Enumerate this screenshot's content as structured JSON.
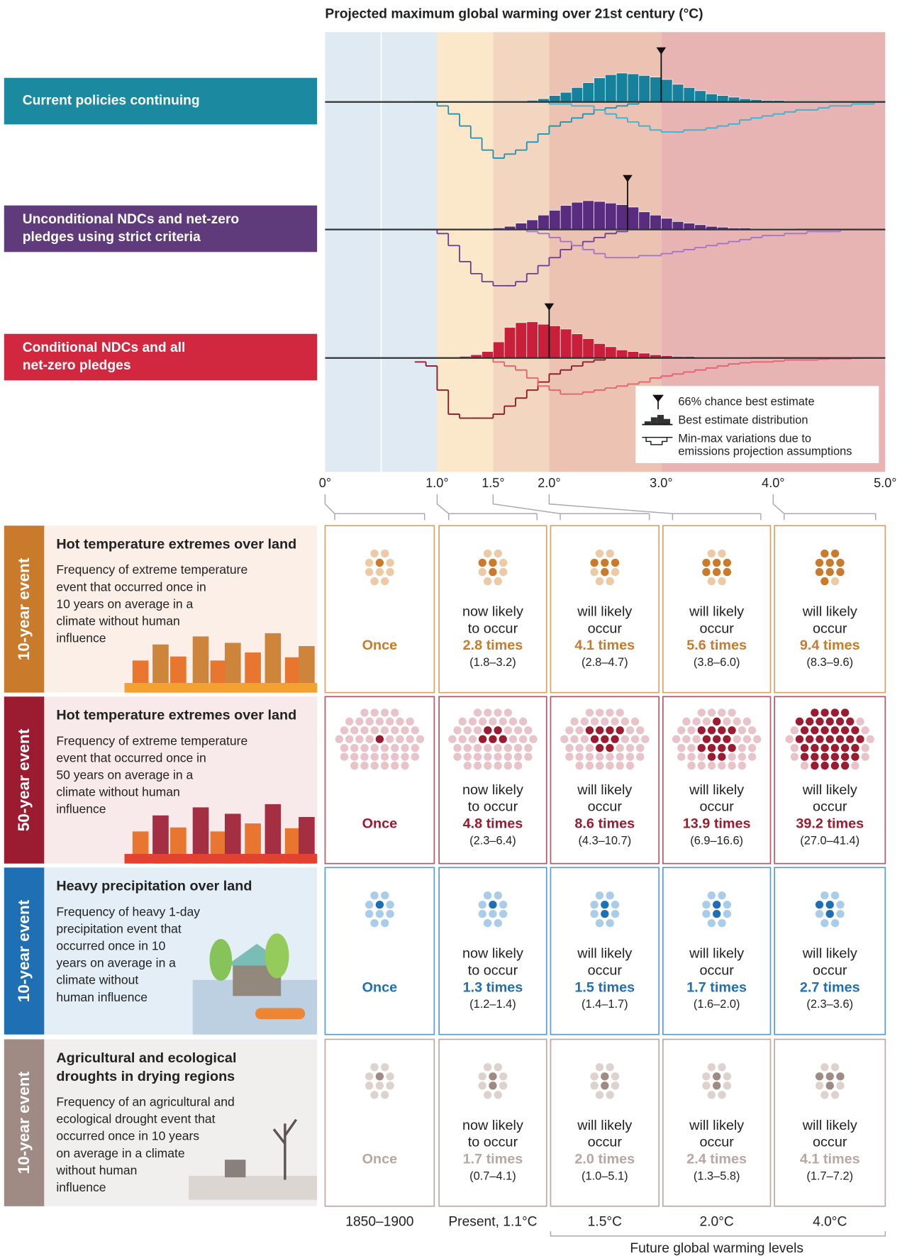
{
  "chart_data": {
    "type": "histogram",
    "title": "Projected maximum global warming over 21st century (°C)",
    "xlim": [
      0,
      5
    ],
    "xticks": [
      {
        "value": 0,
        "label": "0°"
      },
      {
        "value": 1,
        "label": "1.0°"
      },
      {
        "value": 1.5,
        "label": "1.5°"
      },
      {
        "value": 2,
        "label": "2.0°"
      },
      {
        "value": 3,
        "label": "3.0°"
      },
      {
        "value": 4,
        "label": "4.0°"
      },
      {
        "value": 5,
        "label": "5.0°"
      }
    ],
    "ylim": [
      -16,
      9
    ],
    "bins": [
      0.8,
      0.9,
      1.0,
      1.1,
      1.2,
      1.3,
      1.4,
      1.5,
      1.6,
      1.7,
      1.8,
      1.9,
      2.0,
      2.1,
      2.2,
      2.3,
      2.4,
      2.5,
      2.6,
      2.7,
      2.8,
      2.9,
      3.0,
      3.1,
      3.2,
      3.3,
      3.4,
      3.5,
      3.6,
      3.7,
      3.8,
      3.9,
      4.0,
      4.1,
      4.2,
      4.3,
      4.4,
      4.5,
      4.6,
      4.7,
      4.8,
      4.9,
      5.0
    ],
    "bands": [
      {
        "from": 0,
        "to": 1,
        "color": "#dfeaf2"
      },
      {
        "from": 1,
        "to": 1.5,
        "color": "#fbe8cb"
      },
      {
        "from": 1.5,
        "to": 2,
        "color": "#f3d6bf"
      },
      {
        "from": 2,
        "to": 3,
        "color": "#ecc2b2"
      },
      {
        "from": 3,
        "to": 5,
        "color": "#e8b4b3"
      }
    ],
    "scenarios": [
      {
        "label": [
          "Current policies continuing"
        ],
        "color": "#1b8aa0",
        "best_estimate": 3.0,
        "distribution": {
          "color": "#17809b",
          "values": [
            0,
            0,
            0,
            0,
            0,
            0,
            0,
            0,
            0,
            0,
            0.4,
            0.8,
            1.6,
            2.4,
            3.6,
            4.8,
            6,
            6.8,
            7.2,
            7,
            6.6,
            6.2,
            5.6,
            4.4,
            3.6,
            2.8,
            2,
            1.6,
            1.2,
            0.8,
            0.6,
            0.4,
            0.4,
            0.2,
            0.2,
            0.2,
            0.2,
            0,
            0,
            0,
            0,
            0
          ]
        },
        "min_max": [
          {
            "color": "#1d93b0",
            "values": [
              0,
              0,
              1,
              3,
              6,
              9,
              12,
              14,
              13,
              12,
              10,
              8,
              6,
              5,
              4,
              3,
              2,
              1.5,
              1,
              0.5,
              0,
              0,
              0,
              0,
              0,
              0,
              0,
              0,
              0,
              0,
              0,
              0,
              0,
              0,
              0,
              0,
              0,
              0,
              0,
              0,
              0,
              0
            ]
          },
          {
            "color": "#3cb0cf",
            "values": [
              0,
              0,
              0,
              0,
              0,
              0,
              0,
              0,
              0,
              0,
              0,
              0,
              0.5,
              0.5,
              1,
              1,
              2,
              3,
              4,
              5,
              6,
              7,
              7.5,
              7.5,
              7,
              7,
              6.5,
              6,
              5.5,
              4.5,
              4,
              3.5,
              3,
              2.5,
              2,
              2,
              1.5,
              1,
              1,
              0.5,
              0.5,
              0
            ]
          }
        ]
      },
      {
        "label": [
          "Unconditional NDCs and net-zero",
          "pledges using strict criteria"
        ],
        "color": "#5f3b7b",
        "best_estimate": 2.7,
        "distribution": {
          "color": "#5a2c80",
          "values": [
            0,
            0,
            0,
            0,
            0,
            0,
            0,
            0.4,
            0.8,
            1.6,
            2.4,
            3.6,
            4.8,
            6,
            6.8,
            7.2,
            7,
            6.6,
            6.2,
            5.6,
            4.4,
            3.6,
            2.8,
            2,
            1.6,
            1.2,
            0.8,
            0.6,
            0.4,
            0.4,
            0.2,
            0.2,
            0.2,
            0.2,
            0,
            0,
            0,
            0,
            0,
            0,
            0,
            0
          ]
        },
        "min_max": [
          {
            "color": "#6a3c92",
            "values": [
              0,
              0,
              1,
              4,
              8,
              11,
              13,
              14,
              14,
              13,
              11,
              9,
              7,
              5,
              4,
              3,
              2,
              1,
              0.5,
              0,
              0,
              0,
              0,
              0,
              0,
              0,
              0,
              0,
              0,
              0,
              0,
              0,
              0,
              0,
              0,
              0,
              0,
              0,
              0,
              0,
              0,
              0
            ]
          },
          {
            "color": "#a373c4",
            "values": [
              0,
              0,
              0,
              0,
              0,
              0,
              0,
              0,
              0,
              0,
              0.5,
              1,
              2,
              3,
              4,
              5,
              6,
              7,
              7,
              7,
              6.5,
              6.5,
              6,
              5.5,
              5,
              4.5,
              4,
              3.5,
              3,
              2.5,
              2,
              1.5,
              1.5,
              1,
              1,
              0.5,
              0.5,
              0.5,
              0,
              0,
              0,
              0
            ]
          }
        ]
      },
      {
        "label": [
          "Conditional NDCs and all",
          "net-zero pledges"
        ],
        "color": "#d2283f",
        "best_estimate": 2.0,
        "distribution": {
          "color": "#c81f3a",
          "values": [
            0,
            0,
            0,
            0,
            0.4,
            0.8,
            1.6,
            4,
            7.6,
            8.8,
            9,
            8.4,
            8,
            7.2,
            6,
            4.8,
            3.6,
            2.8,
            2,
            1.6,
            1.2,
            0.8,
            0.6,
            0.4,
            0.4,
            0.2,
            0.2,
            0.2,
            0.2,
            0.2,
            0,
            0,
            0,
            0,
            0,
            0,
            0,
            0,
            0,
            0,
            0,
            0
          ]
        },
        "min_max": [
          {
            "color": "#8c1628",
            "values": [
              1,
              2,
              8,
              14,
              15,
              15,
              15,
              14,
              12,
              10,
              8,
              6,
              4,
              3,
              2,
              1,
              0.5,
              0,
              0,
              0,
              0,
              0,
              0,
              0,
              0,
              0,
              0,
              0,
              0,
              0,
              0,
              0,
              0,
              0,
              0,
              0,
              0,
              0,
              0,
              0,
              0,
              0
            ]
          },
          {
            "color": "#e45f70",
            "values": [
              0,
              0,
              0,
              0,
              0,
              0,
              0,
              1,
              2,
              3,
              5,
              7,
              8,
              9,
              9,
              8.5,
              8,
              7.5,
              7,
              6.5,
              6,
              5,
              4.5,
              4,
              3.5,
              3,
              2.5,
              2,
              1.5,
              1.2,
              1,
              1,
              0.8,
              0.5,
              0.5,
              0.5,
              0.3,
              0.2,
              0.2,
              0.1,
              0,
              0
            ]
          }
        ]
      }
    ],
    "legend": [
      "66% chance best estimate",
      "Best estimate distribution",
      "Min-max variations due to",
      "emissions projection assumptions"
    ]
  },
  "panels": {
    "columns": [
      "1850–1900",
      "Present, 1.1°C",
      "1.5°C",
      "2.0°C",
      "4.0°C"
    ],
    "future_label": "Future global warming levels",
    "rows": [
      {
        "event": "10-year event",
        "title": [
          "Hot temperature extremes over land"
        ],
        "description": [
          "Frequency of extreme temperature",
          "event that occurred once in",
          "10 years on average in a",
          "climate without human",
          "influence"
        ],
        "dots": 10,
        "stripe": "#c97a2a",
        "bg": "#fbefe8",
        "dark": "#c97a2a",
        "light": "#eccaa6",
        "text": "#c97a2a",
        "border": "#d8a26a",
        "cells": [
          {
            "frequency": 1,
            "label": "Once"
          },
          {
            "lead": [
              "now likely",
              "to occur"
            ],
            "frequency": 2.8,
            "label": "2.8 times",
            "range": "(1.8–3.2)"
          },
          {
            "lead": [
              "will likely",
              "occur"
            ],
            "frequency": 4.1,
            "label": "4.1 times",
            "range": "(2.8–4.7)"
          },
          {
            "lead": [
              "will likely",
              "occur"
            ],
            "frequency": 5.6,
            "label": "5.6 times",
            "range": "(3.8–6.0)"
          },
          {
            "lead": [
              "will likely",
              "occur"
            ],
            "frequency": 9.4,
            "label": "9.4 times",
            "range": "(8.3–9.6)"
          }
        ]
      },
      {
        "event": "50-year event",
        "title": [
          "Hot temperature extremes over land"
        ],
        "description": [
          "Frequency of extreme temperature",
          "event that occurred once in",
          "50 years on average in a",
          "climate without human",
          "influence"
        ],
        "dots": 50,
        "stripe": "#9b1b30",
        "bg": "#f8e9ea",
        "dark": "#9b1b30",
        "light": "#e8c3ca",
        "text": "#9b1b30",
        "border": "#b4586a",
        "cells": [
          {
            "frequency": 1,
            "label": "Once"
          },
          {
            "lead": [
              "now likely",
              "to occur"
            ],
            "frequency": 4.8,
            "label": "4.8 times",
            "range": "(2.3–6.4)"
          },
          {
            "lead": [
              "will likely",
              "occur"
            ],
            "frequency": 8.6,
            "label": "8.6 times",
            "range": "(4.3–10.7)"
          },
          {
            "lead": [
              "will likely",
              "occur"
            ],
            "frequency": 13.9,
            "label": "13.9 times",
            "range": "(6.9–16.6)"
          },
          {
            "lead": [
              "will likely",
              "occur"
            ],
            "frequency": 39.2,
            "label": "39.2 times",
            "range": "(27.0–41.4)"
          }
        ]
      },
      {
        "event": "10-year event",
        "title": [
          "Heavy precipitation over land"
        ],
        "description": [
          "Frequency of heavy 1-day",
          "precipitation event that",
          "occurred once in 10",
          "years on average in a",
          "climate without",
          "human influence"
        ],
        "dots": 10,
        "stripe": "#1f6fb5",
        "bg": "#e4eef6",
        "dark": "#1f6fb5",
        "light": "#a9cde9",
        "text": "#1f6fb5",
        "border": "#5b9bd0",
        "cells": [
          {
            "frequency": 1,
            "label": "Once"
          },
          {
            "lead": [
              "now likely",
              "to occur"
            ],
            "frequency": 1.3,
            "label": "1.3 times",
            "range": "(1.2–1.4)"
          },
          {
            "lead": [
              "will likely",
              "occur"
            ],
            "frequency": 1.5,
            "label": "1.5 times",
            "range": "(1.4–1.7)"
          },
          {
            "lead": [
              "will likely",
              "occur"
            ],
            "frequency": 1.7,
            "label": "1.7 times",
            "range": "(1.6–2.0)"
          },
          {
            "lead": [
              "will likely",
              "occur"
            ],
            "frequency": 2.7,
            "label": "2.7 times",
            "range": "(2.3–3.6)"
          }
        ]
      },
      {
        "event": "10-year event",
        "title": [
          "Agricultural and ecological",
          "droughts in drying regions"
        ],
        "description": [
          "Frequency of an agricultural and",
          "ecological drought event that",
          "occurred once in 10 years",
          "on average in a climate",
          "without human",
          "influence"
        ],
        "dots": 10,
        "stripe": "#a08b84",
        "bg": "#f1efee",
        "dark": "#a08b84",
        "light": "#ddd2ce",
        "text": "#b8a7a1",
        "border": "#b9aaa5",
        "cells": [
          {
            "frequency": 1,
            "label": "Once"
          },
          {
            "lead": [
              "now likely",
              "to occur"
            ],
            "frequency": 1.7,
            "label": "1.7 times",
            "range": "(0.7–4.1)"
          },
          {
            "lead": [
              "will likely",
              "occur"
            ],
            "frequency": 2.0,
            "label": "2.0 times",
            "range": "(1.0–5.1)"
          },
          {
            "lead": [
              "will likely",
              "occur"
            ],
            "frequency": 2.4,
            "label": "2.4 times",
            "range": "(1.3–5.8)"
          },
          {
            "lead": [
              "will likely",
              "occur"
            ],
            "frequency": 4.1,
            "label": "4.1 times",
            "range": "(1.7–7.2)"
          }
        ]
      }
    ]
  }
}
